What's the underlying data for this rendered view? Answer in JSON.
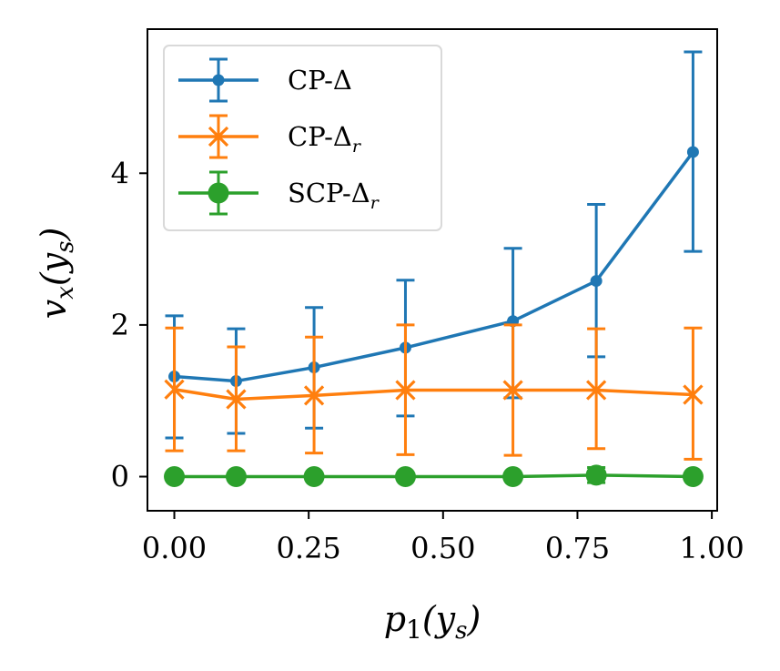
{
  "chart_data": {
    "type": "line",
    "xlabel": "p_1(y_s)",
    "ylabel": "v_x(y_s)",
    "xlim": [
      -0.05,
      1.01
    ],
    "ylim": [
      -0.45,
      5.9
    ],
    "xticks": [
      0.0,
      0.25,
      0.5,
      0.75,
      1.0
    ],
    "xtick_labels": [
      "0.00",
      "0.25",
      "0.50",
      "0.75",
      "1.00"
    ],
    "yticks": [
      0,
      2,
      4
    ],
    "ytick_labels": [
      "0",
      "2",
      "4"
    ],
    "grid": false,
    "legend_position": "top-left",
    "x": [
      0.0,
      0.115,
      0.26,
      0.43,
      0.63,
      0.785,
      0.965
    ],
    "series": [
      {
        "name": "CP-Δ",
        "legend_main": "CP-Δ",
        "legend_sub": "",
        "color": "#1f77b4",
        "marker": "dot",
        "values": [
          1.32,
          1.26,
          1.44,
          1.7,
          2.05,
          2.58,
          4.28
        ],
        "err_low": [
          0.51,
          0.57,
          0.64,
          0.8,
          1.04,
          1.58,
          2.97
        ],
        "err_high": [
          2.12,
          1.95,
          2.23,
          2.59,
          3.01,
          3.59,
          5.6
        ]
      },
      {
        "name": "CP-Δr",
        "legend_main": "CP-Δ",
        "legend_sub": "r",
        "color": "#ff7f0e",
        "marker": "x",
        "values": [
          1.15,
          1.02,
          1.07,
          1.14,
          1.14,
          1.14,
          1.08
        ],
        "err_low": [
          0.34,
          0.34,
          0.31,
          0.29,
          0.28,
          0.37,
          0.23
        ],
        "err_high": [
          1.96,
          1.71,
          1.84,
          2.0,
          2.0,
          1.95,
          1.96
        ]
      },
      {
        "name": "SCP-Δr",
        "legend_main": "SCP-Δ",
        "legend_sub": "r",
        "color": "#2ca02c",
        "marker": "circle",
        "values": [
          0.0,
          0.0,
          0.0,
          0.0,
          0.0,
          0.02,
          0.0
        ],
        "err_low": [
          0.0,
          0.0,
          0.0,
          0.0,
          0.0,
          -0.08,
          0.0
        ],
        "err_high": [
          0.0,
          0.0,
          0.0,
          0.0,
          0.0,
          0.12,
          0.0
        ]
      }
    ]
  }
}
